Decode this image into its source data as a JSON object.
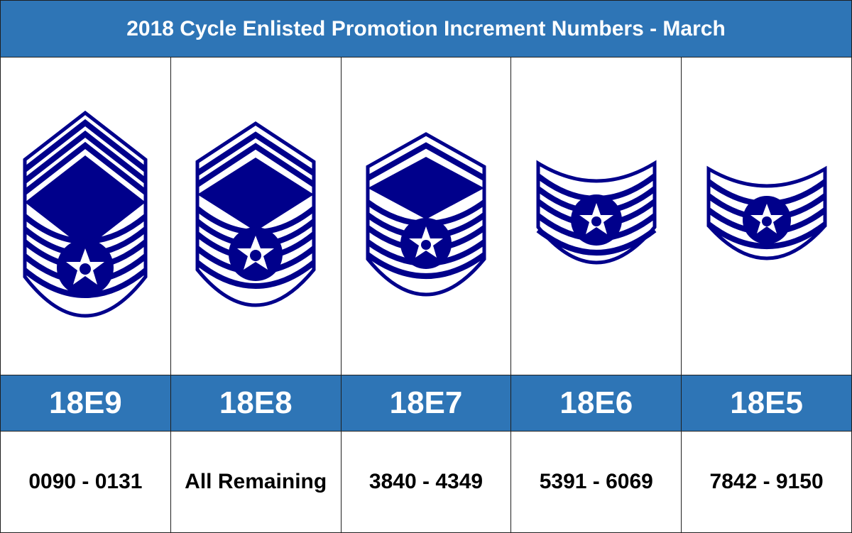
{
  "title": "2018 Cycle Enlisted Promotion Increment Numbers - March",
  "colors": {
    "header_blue": "#2e75b6",
    "insignia_navy": "#00008b",
    "border": "#1f1f1f"
  },
  "columns": [
    {
      "code": "18E9",
      "range": "0090 - 0131",
      "insignia_icon": "cmsgt-chevron-icon"
    },
    {
      "code": "18E8",
      "range": "All Remaining",
      "insignia_icon": "smsgt-chevron-icon"
    },
    {
      "code": "18E7",
      "range": "3840 - 4349",
      "insignia_icon": "msgt-chevron-icon"
    },
    {
      "code": "18E6",
      "range": "5391 - 6069",
      "insignia_icon": "tsgt-chevron-icon"
    },
    {
      "code": "18E5",
      "range": "7842 - 9150",
      "insignia_icon": "ssgt-chevron-icon"
    }
  ]
}
